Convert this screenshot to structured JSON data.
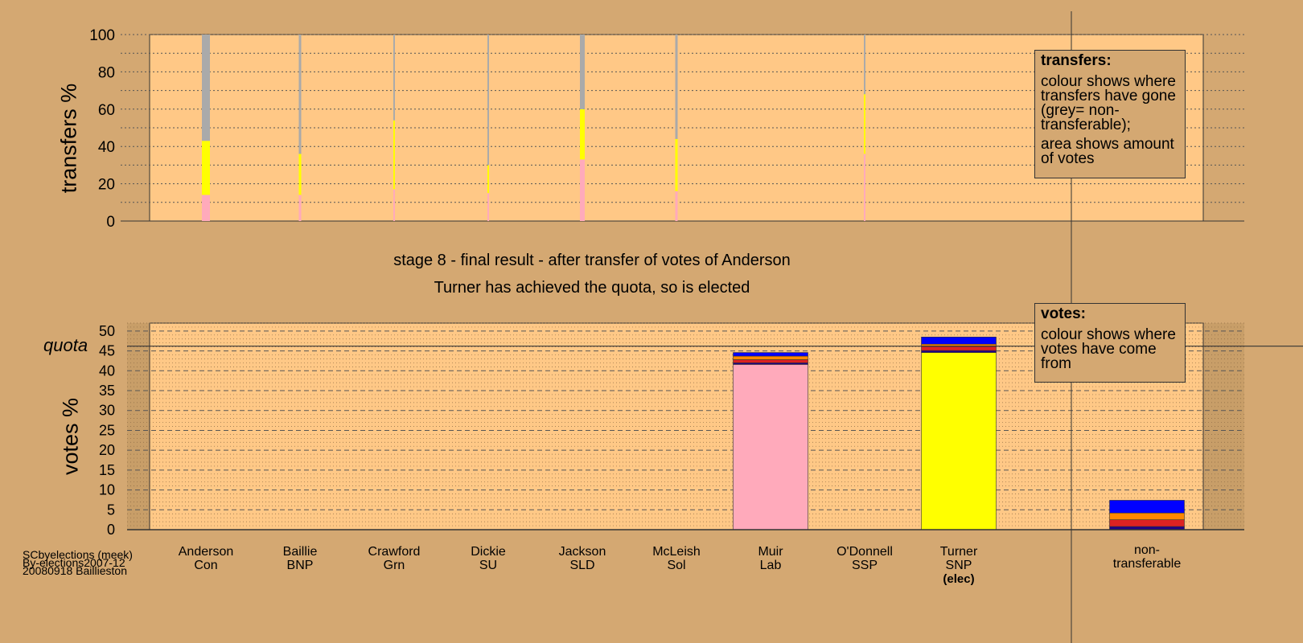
{
  "captions": {
    "stage": "stage 8 - final result - after transfer of votes of Anderson",
    "outcome": "Turner has achieved the quota, so is elected"
  },
  "source": {
    "line1": "SCbyelections (meek)",
    "line2": "By-elections2007-12",
    "line3": "20080918 Baillieston"
  },
  "transfers_note": {
    "title": "transfers:",
    "text1": "colour shows where transfers have gone (grey= non-transferable);",
    "text2": "area shows amount of votes"
  },
  "votes_note": {
    "title": "votes:",
    "text1": "colour shows where votes have come from"
  },
  "quota_label": "quota",
  "colors": {
    "background": "#D4A872",
    "plot_bg": "#FFC886",
    "Con": "#0000FF",
    "Lab": "#FFAABB",
    "SNP": "#FFFF00",
    "Sol": "#DD2222",
    "BNP": "#220088",
    "SSP": "#FF8800",
    "nontransferable": "#AAAAAA"
  },
  "chart_data": [
    {
      "type": "bar",
      "title": "",
      "ylabel": "transfers %",
      "ylim": [
        0,
        100
      ],
      "yticks": [
        0,
        20,
        40,
        60,
        80,
        100
      ],
      "grid": true,
      "categories": [
        "Anderson",
        "Baillie",
        "Crawford",
        "Dickie",
        "Jackson",
        "McLeish",
        "Muir",
        "O'Donnell",
        "Turner"
      ],
      "series": [
        {
          "color_key": "Lab",
          "values": [
            14,
            14,
            17,
            15,
            33,
            16,
            0,
            36,
            0
          ]
        },
        {
          "color_key": "SNP",
          "values": [
            29,
            22,
            37,
            15,
            27,
            28,
            0,
            32,
            0
          ]
        },
        {
          "color_key": "nontransferable",
          "values": [
            57,
            64,
            46,
            70,
            40,
            56,
            0,
            32,
            0
          ]
        }
      ],
      "widths": [
        10,
        3,
        2,
        2,
        6,
        3,
        0,
        2,
        0
      ]
    },
    {
      "type": "bar",
      "title": "",
      "ylabel": "votes %",
      "ylim": [
        0,
        52
      ],
      "yticks": [
        0,
        5,
        10,
        15,
        20,
        25,
        30,
        35,
        40,
        45,
        50
      ],
      "quota": 46.2,
      "grid": true,
      "categories": [
        {
          "name": "Anderson",
          "party": "Con",
          "elected": ""
        },
        {
          "name": "Baillie",
          "party": "BNP",
          "elected": ""
        },
        {
          "name": "Crawford",
          "party": "Grn",
          "elected": ""
        },
        {
          "name": "Dickie",
          "party": "SU",
          "elected": ""
        },
        {
          "name": "Jackson",
          "party": "SLD",
          "elected": ""
        },
        {
          "name": "McLeish",
          "party": "Sol",
          "elected": ""
        },
        {
          "name": "Muir",
          "party": "Lab",
          "elected": ""
        },
        {
          "name": "O'Donnell",
          "party": "SSP",
          "elected": ""
        },
        {
          "name": "Turner",
          "party": "SNP",
          "elected": "(elec)"
        },
        {
          "name": "non-",
          "party": "transferable",
          "elected": ""
        }
      ],
      "stacks": [
        [],
        [],
        [],
        [],
        [],
        [],
        [
          {
            "color_key": "Lab",
            "value": 41.6
          },
          {
            "color_key": "BNP",
            "value": 0.4
          },
          {
            "color_key": "Sol",
            "value": 0.8
          },
          {
            "color_key": "SSP",
            "value": 0.9
          },
          {
            "color_key": "Con",
            "value": 0.9
          }
        ],
        [],
        [
          {
            "color_key": "SNP",
            "value": 44.6
          },
          {
            "color_key": "BNP",
            "value": 0.5
          },
          {
            "color_key": "Sol",
            "value": 1.0
          },
          {
            "color_key": "SSP",
            "value": 0.6
          },
          {
            "color_key": "Con",
            "value": 1.8
          }
        ],
        [
          {
            "color_key": "BNP",
            "value": 0.8
          },
          {
            "color_key": "Sol",
            "value": 1.7
          },
          {
            "color_key": "SSP",
            "value": 1.7
          },
          {
            "color_key": "Con",
            "value": 3.2
          }
        ]
      ]
    }
  ]
}
